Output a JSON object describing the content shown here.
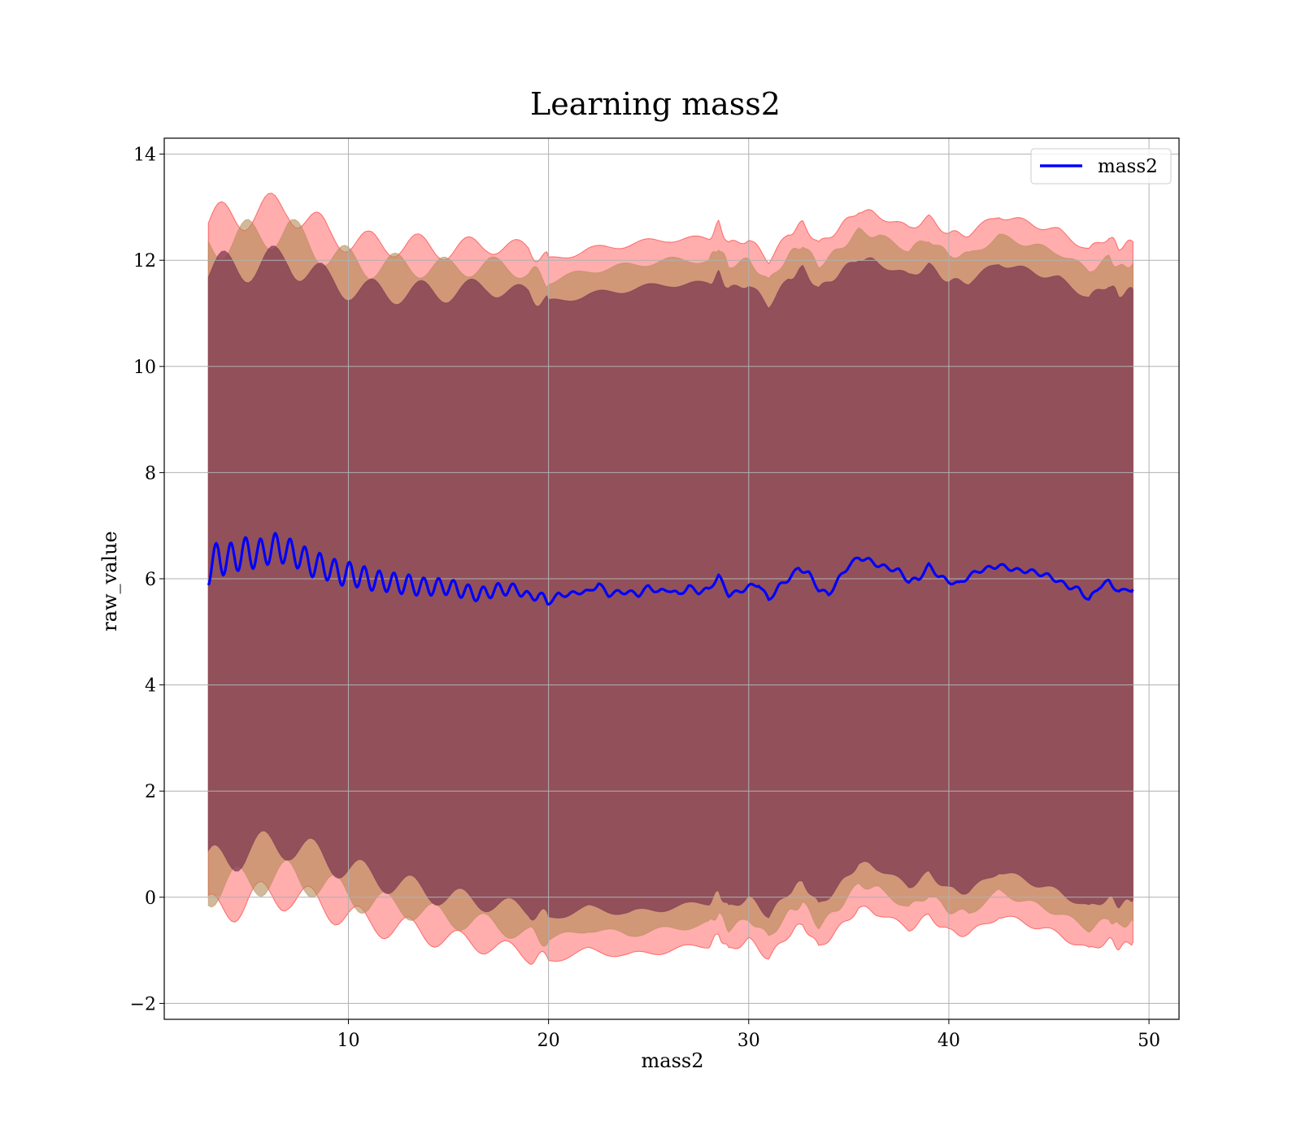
{
  "chart_data": {
    "type": "line",
    "title": "Learning mass2",
    "xlabel": "mass2",
    "ylabel": "raw_value",
    "xlim": [
      0.8,
      51.5
    ],
    "ylim": [
      -2.3,
      14.3
    ],
    "xticks": [
      10,
      20,
      30,
      40,
      50
    ],
    "yticks": [
      -2,
      0,
      2,
      4,
      6,
      8,
      10,
      12,
      14
    ],
    "grid": true,
    "legend_position": "top-right",
    "series": [
      {
        "name": "mass2",
        "color": "#0000ff",
        "points": [
          [
            3.0,
            6.2
          ],
          [
            3.5,
            6.4
          ],
          [
            4.0,
            6.35
          ],
          [
            4.5,
            6.45
          ],
          [
            5.0,
            6.5
          ],
          [
            5.5,
            6.45
          ],
          [
            6.0,
            6.55
          ],
          [
            6.5,
            6.6
          ],
          [
            7.0,
            6.5
          ],
          [
            7.5,
            6.45
          ],
          [
            8.0,
            6.3
          ],
          [
            8.5,
            6.25
          ],
          [
            9.0,
            6.2
          ],
          [
            9.5,
            6.1
          ],
          [
            10.0,
            6.1
          ],
          [
            10.5,
            6.05
          ],
          [
            11.0,
            6.0
          ],
          [
            11.5,
            5.95
          ],
          [
            12.0,
            5.95
          ],
          [
            12.5,
            5.9
          ],
          [
            13.0,
            5.9
          ],
          [
            13.5,
            5.85
          ],
          [
            14.0,
            5.85
          ],
          [
            14.5,
            5.85
          ],
          [
            15.0,
            5.85
          ],
          [
            15.5,
            5.8
          ],
          [
            16.0,
            5.75
          ],
          [
            16.5,
            5.7
          ],
          [
            17.0,
            5.75
          ],
          [
            17.5,
            5.8
          ],
          [
            18.0,
            5.8
          ],
          [
            18.5,
            5.8
          ],
          [
            19.0,
            5.65
          ],
          [
            19.5,
            5.7
          ],
          [
            20.0,
            5.55
          ],
          [
            20.5,
            5.7
          ],
          [
            21.0,
            5.7
          ],
          [
            21.5,
            5.75
          ],
          [
            22.0,
            5.75
          ],
          [
            22.5,
            5.9
          ],
          [
            23.0,
            5.7
          ],
          [
            23.5,
            5.75
          ],
          [
            24.0,
            5.75
          ],
          [
            24.5,
            5.7
          ],
          [
            25.0,
            5.85
          ],
          [
            25.5,
            5.75
          ],
          [
            26.0,
            5.8
          ],
          [
            26.5,
            5.7
          ],
          [
            27.0,
            5.85
          ],
          [
            27.5,
            5.75
          ],
          [
            28.0,
            5.8
          ],
          [
            28.5,
            6.05
          ],
          [
            29.0,
            5.7
          ],
          [
            29.5,
            5.75
          ],
          [
            30.0,
            5.85
          ],
          [
            30.5,
            5.9
          ],
          [
            31.0,
            5.6
          ],
          [
            31.5,
            5.85
          ],
          [
            32.0,
            6.0
          ],
          [
            32.5,
            6.2
          ],
          [
            33.0,
            6.1
          ],
          [
            33.5,
            5.8
          ],
          [
            34.0,
            5.7
          ],
          [
            34.5,
            6.0
          ],
          [
            35.0,
            6.25
          ],
          [
            35.5,
            6.4
          ],
          [
            36.0,
            6.35
          ],
          [
            36.5,
            6.25
          ],
          [
            37.0,
            6.2
          ],
          [
            37.5,
            6.15
          ],
          [
            38.0,
            5.95
          ],
          [
            38.5,
            6.0
          ],
          [
            39.0,
            6.25
          ],
          [
            39.5,
            6.05
          ],
          [
            40.0,
            5.95
          ],
          [
            40.5,
            5.9
          ],
          [
            41.0,
            6.05
          ],
          [
            41.5,
            6.15
          ],
          [
            42.0,
            6.2
          ],
          [
            42.5,
            6.25
          ],
          [
            43.0,
            6.2
          ],
          [
            43.5,
            6.15
          ],
          [
            44.0,
            6.15
          ],
          [
            44.5,
            6.1
          ],
          [
            45.0,
            6.05
          ],
          [
            45.5,
            5.95
          ],
          [
            46.0,
            5.85
          ],
          [
            46.5,
            5.8
          ],
          [
            47.0,
            5.6
          ],
          [
            47.5,
            5.85
          ],
          [
            48.0,
            5.95
          ],
          [
            48.5,
            5.75
          ],
          [
            49.2,
            5.8
          ]
        ]
      }
    ],
    "bands": [
      {
        "color": "#ff0000",
        "opacity": 0.32,
        "points": [
          [
            3.0,
            -0.3,
            12.7
          ],
          [
            5.0,
            -0.05,
            12.9
          ],
          [
            7.0,
            0.05,
            13.0
          ],
          [
            9.0,
            -0.2,
            12.5
          ],
          [
            11.0,
            -0.5,
            12.3
          ],
          [
            13.0,
            -0.6,
            12.3
          ],
          [
            15.0,
            -0.8,
            12.2
          ],
          [
            17.0,
            -0.9,
            12.3
          ],
          [
            19.0,
            -1.1,
            12.2
          ],
          [
            20.0,
            -1.2,
            12.0
          ],
          [
            22.0,
            -1.0,
            12.2
          ],
          [
            24.0,
            -1.1,
            12.3
          ],
          [
            26.0,
            -1.0,
            12.4
          ],
          [
            28.0,
            -0.9,
            12.4
          ],
          [
            28.5,
            -0.7,
            12.7
          ],
          [
            29.0,
            -1.0,
            12.3
          ],
          [
            30.0,
            -0.8,
            12.4
          ],
          [
            31.0,
            -1.15,
            12.0
          ],
          [
            32.0,
            -0.7,
            12.5
          ],
          [
            32.7,
            -0.5,
            12.7
          ],
          [
            33.5,
            -0.95,
            12.3
          ],
          [
            34.5,
            -0.6,
            12.6
          ],
          [
            35.5,
            -0.2,
            12.95
          ],
          [
            36.5,
            -0.3,
            12.85
          ],
          [
            38.0,
            -0.6,
            12.6
          ],
          [
            39.0,
            -0.35,
            12.8
          ],
          [
            40.0,
            -0.65,
            12.5
          ],
          [
            41.0,
            -0.7,
            12.5
          ],
          [
            42.5,
            -0.35,
            12.85
          ],
          [
            44.0,
            -0.5,
            12.7
          ],
          [
            45.5,
            -0.7,
            12.55
          ],
          [
            47.0,
            -1.0,
            12.2
          ],
          [
            48.0,
            -0.8,
            12.45
          ],
          [
            48.5,
            -0.95,
            12.25
          ],
          [
            49.2,
            -0.85,
            12.35
          ]
        ]
      },
      {
        "color": "#b38a55",
        "opacity": 0.6,
        "points": [
          [
            3.0,
            0.15,
            12.3
          ],
          [
            5.0,
            0.3,
            12.45
          ],
          [
            7.0,
            0.4,
            12.55
          ],
          [
            9.0,
            0.2,
            12.1
          ],
          [
            11.0,
            -0.1,
            11.9
          ],
          [
            13.0,
            -0.2,
            11.9
          ],
          [
            15.0,
            -0.4,
            11.85
          ],
          [
            17.0,
            -0.5,
            11.9
          ],
          [
            19.0,
            -0.7,
            11.8
          ],
          [
            20.0,
            -0.8,
            11.6
          ],
          [
            22.0,
            -0.6,
            11.8
          ],
          [
            24.0,
            -0.7,
            11.9
          ],
          [
            26.0,
            -0.6,
            12.0
          ],
          [
            28.0,
            -0.5,
            12.0
          ],
          [
            28.5,
            -0.3,
            12.25
          ],
          [
            29.0,
            -0.6,
            11.9
          ],
          [
            30.0,
            -0.4,
            12.0
          ],
          [
            31.0,
            -0.75,
            11.6
          ],
          [
            32.0,
            -0.3,
            12.1
          ],
          [
            32.7,
            -0.1,
            12.3
          ],
          [
            33.5,
            -0.55,
            11.9
          ],
          [
            34.5,
            -0.2,
            12.2
          ],
          [
            35.5,
            0.25,
            12.55
          ],
          [
            36.5,
            0.15,
            12.45
          ],
          [
            38.0,
            -0.2,
            12.2
          ],
          [
            39.0,
            0.05,
            12.4
          ],
          [
            40.0,
            -0.25,
            12.1
          ],
          [
            41.0,
            -0.3,
            12.1
          ],
          [
            42.5,
            0.1,
            12.45
          ],
          [
            44.0,
            -0.1,
            12.3
          ],
          [
            45.5,
            -0.3,
            12.15
          ],
          [
            47.0,
            -0.6,
            11.8
          ],
          [
            48.0,
            -0.4,
            12.05
          ],
          [
            48.5,
            -0.55,
            11.85
          ],
          [
            49.2,
            -0.45,
            11.95
          ]
        ]
      },
      {
        "color": "#7a3450",
        "opacity": 0.72,
        "points": [
          [
            3.0,
            0.6,
            11.8
          ],
          [
            5.0,
            0.9,
            11.9
          ],
          [
            7.0,
            1.0,
            12.0
          ],
          [
            9.0,
            0.7,
            11.6
          ],
          [
            11.0,
            0.4,
            11.4
          ],
          [
            13.0,
            0.2,
            11.4
          ],
          [
            15.0,
            0.0,
            11.4
          ],
          [
            17.0,
            -0.1,
            11.5
          ],
          [
            19.0,
            -0.25,
            11.35
          ],
          [
            20.0,
            -0.4,
            11.2
          ],
          [
            22.0,
            -0.2,
            11.35
          ],
          [
            24.0,
            -0.3,
            11.45
          ],
          [
            26.0,
            -0.2,
            11.55
          ],
          [
            28.0,
            -0.1,
            11.55
          ],
          [
            28.5,
            0.1,
            11.75
          ],
          [
            29.0,
            -0.2,
            11.45
          ],
          [
            30.0,
            0.0,
            11.55
          ],
          [
            31.0,
            -0.35,
            11.15
          ],
          [
            32.0,
            0.1,
            11.65
          ],
          [
            32.7,
            0.3,
            11.85
          ],
          [
            33.5,
            -0.15,
            11.45
          ],
          [
            34.5,
            0.2,
            11.75
          ],
          [
            35.5,
            0.65,
            12.05
          ],
          [
            36.5,
            0.55,
            11.95
          ],
          [
            38.0,
            0.2,
            11.7
          ],
          [
            39.0,
            0.45,
            11.9
          ],
          [
            40.0,
            0.15,
            11.6
          ],
          [
            41.0,
            0.1,
            11.6
          ],
          [
            42.5,
            0.5,
            11.95
          ],
          [
            44.0,
            0.3,
            11.8
          ],
          [
            45.5,
            0.1,
            11.65
          ],
          [
            47.0,
            -0.2,
            11.3
          ],
          [
            48.0,
            0.0,
            11.55
          ],
          [
            48.5,
            -0.15,
            11.35
          ],
          [
            49.2,
            -0.05,
            11.45
          ]
        ]
      }
    ]
  }
}
